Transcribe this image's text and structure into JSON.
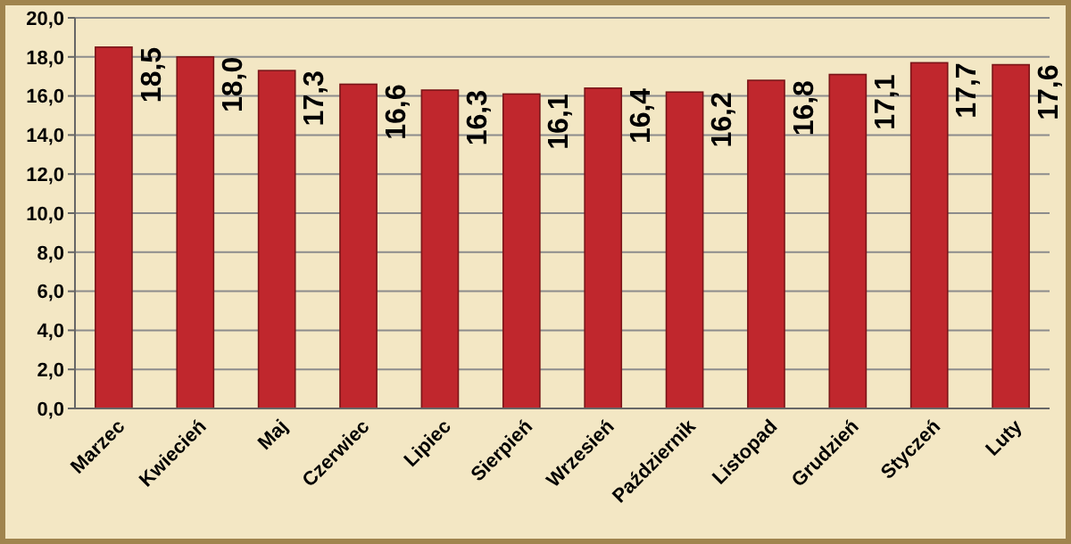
{
  "chart_data": {
    "type": "bar",
    "categories": [
      "Marzec",
      "Kwiecień",
      "Maj",
      "Czerwiec",
      "Lipiec",
      "Sierpień",
      "Wrzesień",
      "Październik",
      "Listopad",
      "Grudzień",
      "Styczeń",
      "Luty"
    ],
    "values": [
      18.5,
      18.0,
      17.3,
      16.6,
      16.3,
      16.1,
      16.4,
      16.2,
      16.8,
      17.1,
      17.7,
      17.6
    ],
    "value_labels": [
      "18,5",
      "18,0",
      "17,3",
      "16,6",
      "16,3",
      "16,1",
      "16,4",
      "16,2",
      "16,8",
      "17,1",
      "17,7",
      "17,6"
    ],
    "color": "#c0272d",
    "ylim": [
      0,
      20
    ],
    "yticks": [
      {
        "value": 0,
        "label": "0,0"
      },
      {
        "value": 2,
        "label": "2,0"
      },
      {
        "value": 4,
        "label": "4,0"
      },
      {
        "value": 6,
        "label": "6,0"
      },
      {
        "value": 8,
        "label": "8,0"
      },
      {
        "value": 10,
        "label": "10,0"
      },
      {
        "value": 12,
        "label": "12,0"
      },
      {
        "value": 14,
        "label": "14,0"
      },
      {
        "value": 16,
        "label": "16,0"
      },
      {
        "value": 18,
        "label": "18,0"
      },
      {
        "value": 20,
        "label": "20,0"
      }
    ],
    "grid": "y"
  }
}
